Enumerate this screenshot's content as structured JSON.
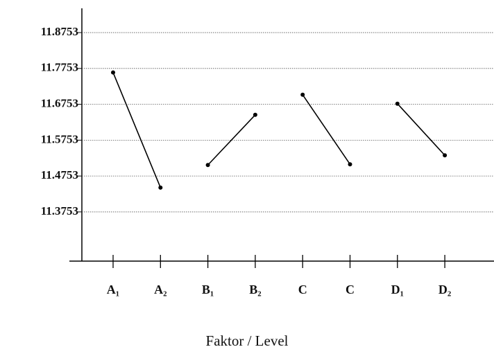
{
  "chart_data": {
    "type": "line",
    "x_label": "Faktor / Level",
    "categories": [
      "A₁",
      "A₂",
      "B₁",
      "B₂",
      "C",
      "C",
      "D₁",
      "D₂"
    ],
    "series": [
      {
        "color": "#000000",
        "values": [
          11.764,
          11.443,
          null,
          null,
          null,
          null,
          null,
          null
        ]
      },
      {
        "color": "#000000",
        "values": [
          null,
          null,
          11.506,
          11.646,
          null,
          null,
          null,
          null
        ]
      },
      {
        "color": "#000000",
        "values": [
          null,
          null,
          null,
          null,
          11.702,
          11.508,
          null,
          null
        ]
      },
      {
        "color": "#000000",
        "values": [
          null,
          null,
          null,
          null,
          null,
          null,
          11.677,
          11.533
        ]
      }
    ],
    "ylim": [
      11.238,
      11.943
    ],
    "yticks": [
      11.8753,
      11.7753,
      11.6753,
      11.5753,
      11.4753,
      11.3753
    ],
    "grid": true
  }
}
